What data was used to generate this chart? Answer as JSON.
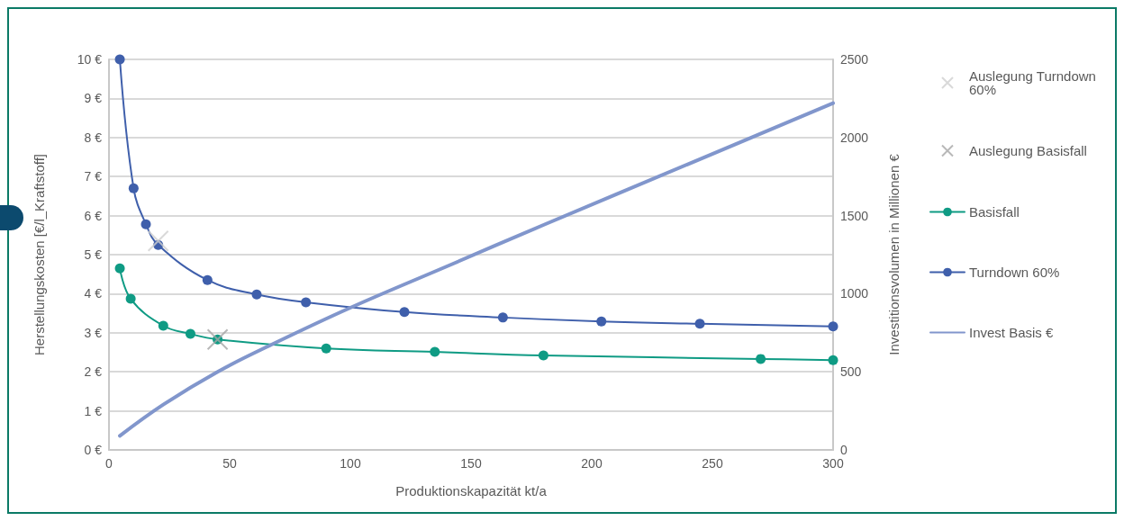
{
  "chart_data": {
    "type": "line",
    "xlabel": "Produktionskapazität kt/a",
    "ylabel": "Herstellungskosten [€/l_Kraftstoff]",
    "y2label": "Investitionsvolumen in Millionen €",
    "xlim": [
      0,
      300
    ],
    "xticks": [
      0,
      50,
      100,
      150,
      200,
      250,
      300
    ],
    "ylim": [
      0,
      10
    ],
    "yticks": [
      {
        "value": 0,
        "label": "0 €"
      },
      {
        "value": 1,
        "label": "1 €"
      },
      {
        "value": 2,
        "label": "2 €"
      },
      {
        "value": 3,
        "label": "3 €"
      },
      {
        "value": 4,
        "label": "4 €"
      },
      {
        "value": 5,
        "label": "5 €"
      },
      {
        "value": 6,
        "label": "6 €"
      },
      {
        "value": 7,
        "label": "7 €"
      },
      {
        "value": 8,
        "label": "8 €"
      },
      {
        "value": 9,
        "label": "9 €"
      },
      {
        "value": 10,
        "label": "10 €"
      }
    ],
    "y2lim": [
      0,
      2500
    ],
    "y2ticks": [
      0,
      500,
      1000,
      1500,
      2000,
      2500
    ],
    "grid": "y",
    "legend": "right",
    "series": [
      {
        "name": "Auslegung Turndown 60%",
        "type": "scatter",
        "marker": "cross",
        "color": "#d0d0d0",
        "x": [
          20.4
        ],
        "values": [
          5.35
        ]
      },
      {
        "name": "Auslegung Basisfall",
        "type": "scatter",
        "marker": "cross",
        "color": "#a6a6a6",
        "x": [
          45
        ],
        "values": [
          2.83
        ]
      },
      {
        "name": "Basisfall",
        "marker": "circle",
        "color": "#0f9b84",
        "x": [
          4.5,
          9,
          22.5,
          33.75,
          45,
          90,
          135,
          180,
          270,
          300
        ],
        "values": [
          4.65,
          3.87,
          3.18,
          2.97,
          2.83,
          2.6,
          2.51,
          2.42,
          2.33,
          2.3
        ]
      },
      {
        "name": "Turndown 60%",
        "marker": "circle",
        "color": "#3f5fab",
        "x": [
          4.5,
          10.2,
          15.3,
          20.4,
          40.8,
          61.2,
          81.6,
          122.4,
          163.2,
          204,
          244.8,
          300
        ],
        "values": [
          10,
          6.7,
          5.78,
          5.25,
          4.35,
          3.98,
          3.78,
          3.53,
          3.39,
          3.29,
          3.23,
          3.16
        ]
      },
      {
        "name": "Invest Basis €",
        "axis": "y2",
        "marker": "none",
        "color": "#8196cc",
        "x": [
          4.5,
          22.5,
          45,
          67.5,
          100,
          140,
          180,
          240,
          300
        ],
        "values": [
          90,
          290,
          500,
          675,
          910,
          1175,
          1440,
          1830,
          2220
        ]
      }
    ]
  }
}
